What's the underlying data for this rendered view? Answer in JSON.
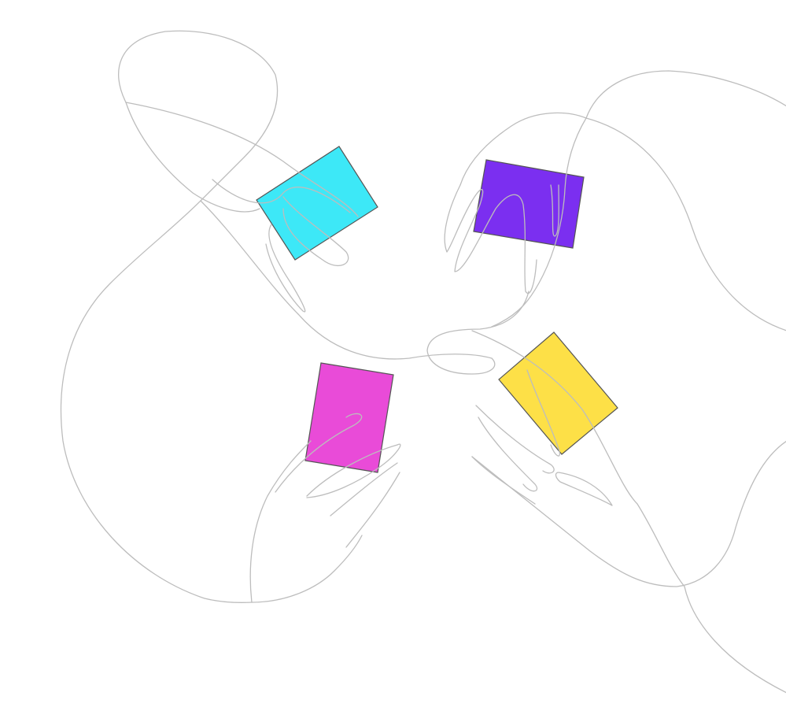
{
  "illustration": {
    "description_icon": "hands-exchanging-cards-illustration",
    "background_color": "#ffffff",
    "line_color": "#bdbdbd",
    "card_outline_color": "#555555",
    "cards": [
      {
        "name": "cyan-card",
        "color": "#3de8f7"
      },
      {
        "name": "purple-card",
        "color": "#7b2ff0"
      },
      {
        "name": "magenta-card",
        "color": "#e94bd8"
      },
      {
        "name": "yellow-card",
        "color": "#fde047"
      }
    ]
  }
}
